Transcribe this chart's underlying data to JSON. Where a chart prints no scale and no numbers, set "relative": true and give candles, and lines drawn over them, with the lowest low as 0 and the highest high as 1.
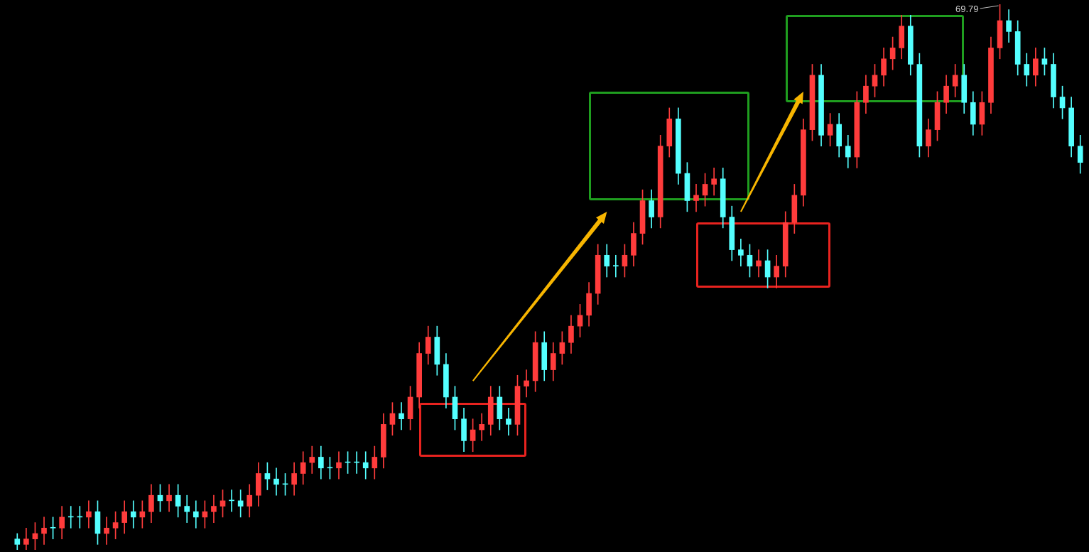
{
  "chart_data": {
    "type": "candlestick",
    "relative": true,
    "categories": [
      null,
      null,
      null,
      null,
      null,
      null,
      null,
      null,
      null,
      null,
      null,
      null,
      null,
      null,
      null,
      null,
      null,
      null,
      null,
      null,
      null,
      null,
      null,
      null,
      null,
      null,
      null,
      null,
      null,
      null,
      null,
      null,
      null,
      null,
      null,
      null,
      null,
      null,
      null,
      null,
      null,
      null,
      null,
      null,
      null,
      null,
      null,
      null,
      null,
      null,
      null,
      null,
      null,
      null,
      null,
      null,
      null,
      null,
      null,
      null,
      null,
      null,
      null,
      null,
      null,
      null,
      null,
      null,
      null,
      null,
      null,
      null,
      null,
      null,
      null,
      null,
      null,
      null,
      null,
      null,
      null,
      null,
      null,
      null,
      null,
      null,
      null,
      null,
      null,
      null,
      null,
      null,
      null,
      null,
      null,
      null,
      null,
      null,
      null,
      null,
      null,
      null,
      null,
      null,
      null,
      null,
      null,
      null,
      null,
      null,
      null,
      null,
      null,
      null,
      null,
      null,
      null,
      null,
      null,
      null
    ],
    "ohlc": [
      [
        0.02,
        0.03,
        0.0,
        0.01
      ],
      [
        0.01,
        0.04,
        0.0,
        0.02
      ],
      [
        0.02,
        0.05,
        0.0,
        0.03
      ],
      [
        0.03,
        0.06,
        0.01,
        0.04
      ],
      [
        0.04,
        0.06,
        0.02,
        0.04
      ],
      [
        0.04,
        0.08,
        0.02,
        0.06
      ],
      [
        0.06,
        0.08,
        0.04,
        0.06
      ],
      [
        0.06,
        0.08,
        0.04,
        0.06
      ],
      [
        0.06,
        0.09,
        0.04,
        0.07
      ],
      [
        0.07,
        0.09,
        0.01,
        0.03
      ],
      [
        0.03,
        0.06,
        0.01,
        0.04
      ],
      [
        0.04,
        0.07,
        0.02,
        0.05
      ],
      [
        0.05,
        0.09,
        0.03,
        0.07
      ],
      [
        0.07,
        0.09,
        0.04,
        0.06
      ],
      [
        0.06,
        0.09,
        0.04,
        0.07
      ],
      [
        0.07,
        0.12,
        0.05,
        0.1
      ],
      [
        0.1,
        0.12,
        0.07,
        0.09
      ],
      [
        0.09,
        0.12,
        0.07,
        0.1
      ],
      [
        0.1,
        0.12,
        0.06,
        0.08
      ],
      [
        0.08,
        0.1,
        0.05,
        0.07
      ],
      [
        0.07,
        0.09,
        0.04,
        0.06
      ],
      [
        0.06,
        0.09,
        0.04,
        0.07
      ],
      [
        0.07,
        0.1,
        0.05,
        0.08
      ],
      [
        0.08,
        0.11,
        0.06,
        0.09
      ],
      [
        0.09,
        0.11,
        0.07,
        0.09
      ],
      [
        0.09,
        0.11,
        0.06,
        0.08
      ],
      [
        0.08,
        0.12,
        0.06,
        0.1
      ],
      [
        0.1,
        0.16,
        0.08,
        0.14
      ],
      [
        0.14,
        0.16,
        0.11,
        0.13
      ],
      [
        0.13,
        0.15,
        0.1,
        0.12
      ],
      [
        0.12,
        0.14,
        0.1,
        0.12
      ],
      [
        0.12,
        0.16,
        0.1,
        0.14
      ],
      [
        0.14,
        0.18,
        0.12,
        0.16
      ],
      [
        0.16,
        0.19,
        0.14,
        0.17
      ],
      [
        0.17,
        0.19,
        0.13,
        0.15
      ],
      [
        0.15,
        0.17,
        0.13,
        0.15
      ],
      [
        0.15,
        0.18,
        0.13,
        0.16
      ],
      [
        0.16,
        0.18,
        0.14,
        0.16
      ],
      [
        0.16,
        0.18,
        0.14,
        0.16
      ],
      [
        0.16,
        0.18,
        0.13,
        0.15
      ],
      [
        0.15,
        0.19,
        0.13,
        0.17
      ],
      [
        0.17,
        0.25,
        0.15,
        0.23
      ],
      [
        0.23,
        0.27,
        0.21,
        0.25
      ],
      [
        0.25,
        0.27,
        0.22,
        0.24
      ],
      [
        0.24,
        0.3,
        0.22,
        0.28
      ],
      [
        0.28,
        0.38,
        0.26,
        0.36
      ],
      [
        0.36,
        0.41,
        0.34,
        0.39
      ],
      [
        0.39,
        0.41,
        0.32,
        0.34
      ],
      [
        0.34,
        0.36,
        0.26,
        0.28
      ],
      [
        0.28,
        0.3,
        0.22,
        0.24
      ],
      [
        0.24,
        0.26,
        0.18,
        0.2
      ],
      [
        0.2,
        0.24,
        0.18,
        0.22
      ],
      [
        0.22,
        0.25,
        0.2,
        0.23
      ],
      [
        0.23,
        0.3,
        0.21,
        0.28
      ],
      [
        0.28,
        0.3,
        0.22,
        0.24
      ],
      [
        0.24,
        0.26,
        0.21,
        0.23
      ],
      [
        0.23,
        0.32,
        0.21,
        0.3
      ],
      [
        0.3,
        0.33,
        0.28,
        0.31
      ],
      [
        0.31,
        0.4,
        0.29,
        0.38
      ],
      [
        0.38,
        0.4,
        0.31,
        0.33
      ],
      [
        0.33,
        0.38,
        0.31,
        0.36
      ],
      [
        0.36,
        0.4,
        0.34,
        0.38
      ],
      [
        0.38,
        0.43,
        0.36,
        0.41
      ],
      [
        0.41,
        0.45,
        0.39,
        0.43
      ],
      [
        0.43,
        0.49,
        0.41,
        0.47
      ],
      [
        0.47,
        0.56,
        0.45,
        0.54
      ],
      [
        0.54,
        0.56,
        0.5,
        0.52
      ],
      [
        0.52,
        0.54,
        0.5,
        0.52
      ],
      [
        0.52,
        0.56,
        0.5,
        0.54
      ],
      [
        0.54,
        0.6,
        0.52,
        0.58
      ],
      [
        0.58,
        0.66,
        0.56,
        0.64
      ],
      [
        0.64,
        0.66,
        0.59,
        0.61
      ],
      [
        0.61,
        0.76,
        0.59,
        0.74
      ],
      [
        0.74,
        0.81,
        0.72,
        0.79
      ],
      [
        0.79,
        0.81,
        0.67,
        0.69
      ],
      [
        0.69,
        0.71,
        0.62,
        0.64
      ],
      [
        0.64,
        0.67,
        0.62,
        0.65
      ],
      [
        0.65,
        0.69,
        0.63,
        0.67
      ],
      [
        0.67,
        0.7,
        0.65,
        0.68
      ],
      [
        0.68,
        0.7,
        0.59,
        0.61
      ],
      [
        0.61,
        0.63,
        0.53,
        0.55
      ],
      [
        0.55,
        0.57,
        0.52,
        0.54
      ],
      [
        0.54,
        0.56,
        0.5,
        0.52
      ],
      [
        0.52,
        0.55,
        0.5,
        0.53
      ],
      [
        0.53,
        0.55,
        0.48,
        0.5
      ],
      [
        0.5,
        0.54,
        0.48,
        0.52
      ],
      [
        0.52,
        0.62,
        0.5,
        0.6
      ],
      [
        0.6,
        0.67,
        0.58,
        0.65
      ],
      [
        0.65,
        0.79,
        0.63,
        0.77
      ],
      [
        0.77,
        0.89,
        0.75,
        0.87
      ],
      [
        0.87,
        0.89,
        0.74,
        0.76
      ],
      [
        0.76,
        0.8,
        0.74,
        0.78
      ],
      [
        0.78,
        0.8,
        0.72,
        0.74
      ],
      [
        0.74,
        0.76,
        0.7,
        0.72
      ],
      [
        0.72,
        0.84,
        0.7,
        0.82
      ],
      [
        0.82,
        0.87,
        0.8,
        0.85
      ],
      [
        0.85,
        0.89,
        0.83,
        0.87
      ],
      [
        0.87,
        0.92,
        0.85,
        0.9
      ],
      [
        0.9,
        0.94,
        0.88,
        0.92
      ],
      [
        0.92,
        0.98,
        0.9,
        0.96
      ],
      [
        0.96,
        0.98,
        0.87,
        0.89
      ],
      [
        0.89,
        0.91,
        0.72,
        0.74
      ],
      [
        0.74,
        0.79,
        0.72,
        0.77
      ],
      [
        0.77,
        0.84,
        0.75,
        0.82
      ],
      [
        0.82,
        0.87,
        0.8,
        0.85
      ],
      [
        0.85,
        0.89,
        0.83,
        0.87
      ],
      [
        0.87,
        0.89,
        0.8,
        0.82
      ],
      [
        0.82,
        0.84,
        0.76,
        0.78
      ],
      [
        0.78,
        0.84,
        0.76,
        0.82
      ],
      [
        0.82,
        0.94,
        0.8,
        0.92
      ],
      [
        0.92,
        1.0,
        0.9,
        0.97
      ],
      [
        0.97,
        0.99,
        0.93,
        0.95
      ],
      [
        0.95,
        0.97,
        0.87,
        0.89
      ],
      [
        0.89,
        0.91,
        0.85,
        0.87
      ],
      [
        0.87,
        0.92,
        0.85,
        0.9
      ],
      [
        0.9,
        0.92,
        0.87,
        0.89
      ],
      [
        0.89,
        0.91,
        0.81,
        0.83
      ],
      [
        0.83,
        0.85,
        0.79,
        0.81
      ],
      [
        0.81,
        0.83,
        0.72,
        0.74
      ],
      [
        0.74,
        0.76,
        0.69,
        0.71
      ]
    ],
    "colors": [
      "#54ffff",
      "#ff3c3c",
      "#ff3c3c",
      "#ff3c3c",
      "#54ffff",
      "#ff3c3c",
      "#54ffff",
      "#54ffff",
      "#ff3c3c",
      "#54ffff",
      "#ff3c3c",
      "#ff3c3c",
      "#ff3c3c",
      "#54ffff",
      "#ff3c3c",
      "#ff3c3c",
      "#54ffff",
      "#ff3c3c",
      "#54ffff",
      "#54ffff",
      "#54ffff",
      "#ff3c3c",
      "#ff3c3c",
      "#ff3c3c",
      "#54ffff",
      "#54ffff",
      "#ff3c3c",
      "#ff3c3c",
      "#54ffff",
      "#54ffff",
      "#54ffff",
      "#ff3c3c",
      "#ff3c3c",
      "#ff3c3c",
      "#54ffff",
      "#54ffff",
      "#ff3c3c",
      "#54ffff",
      "#54ffff",
      "#54ffff",
      "#ff3c3c",
      "#ff3c3c",
      "#ff3c3c",
      "#54ffff",
      "#ff3c3c",
      "#ff3c3c",
      "#ff3c3c",
      "#54ffff",
      "#54ffff",
      "#54ffff",
      "#54ffff",
      "#ff3c3c",
      "#ff3c3c",
      "#ff3c3c",
      "#54ffff",
      "#54ffff",
      "#ff3c3c",
      "#ff3c3c",
      "#ff3c3c",
      "#54ffff",
      "#ff3c3c",
      "#ff3c3c",
      "#ff3c3c",
      "#ff3c3c",
      "#ff3c3c",
      "#ff3c3c",
      "#54ffff",
      "#54ffff",
      "#ff3c3c",
      "#ff3c3c",
      "#ff3c3c",
      "#54ffff",
      "#ff3c3c",
      "#ff3c3c",
      "#54ffff",
      "#54ffff",
      "#ff3c3c",
      "#ff3c3c",
      "#ff3c3c",
      "#54ffff",
      "#54ffff",
      "#54ffff",
      "#54ffff",
      "#ff3c3c",
      "#54ffff",
      "#ff3c3c",
      "#ff3c3c",
      "#ff3c3c",
      "#ff3c3c",
      "#ff3c3c",
      "#54ffff",
      "#ff3c3c",
      "#54ffff",
      "#54ffff",
      "#ff3c3c",
      "#ff3c3c",
      "#ff3c3c",
      "#ff3c3c",
      "#ff3c3c",
      "#ff3c3c",
      "#54ffff",
      "#54ffff",
      "#ff3c3c",
      "#ff3c3c",
      "#ff3c3c",
      "#ff3c3c",
      "#54ffff",
      "#54ffff",
      "#ff3c3c",
      "#ff3c3c",
      "#ff3c3c",
      "#54ffff",
      "#54ffff",
      "#54ffff",
      "#ff3c3c",
      "#54ffff",
      "#54ffff",
      "#54ffff",
      "#54ffff",
      "#54ffff"
    ],
    "annotations": [
      "69.79"
    ]
  }
}
